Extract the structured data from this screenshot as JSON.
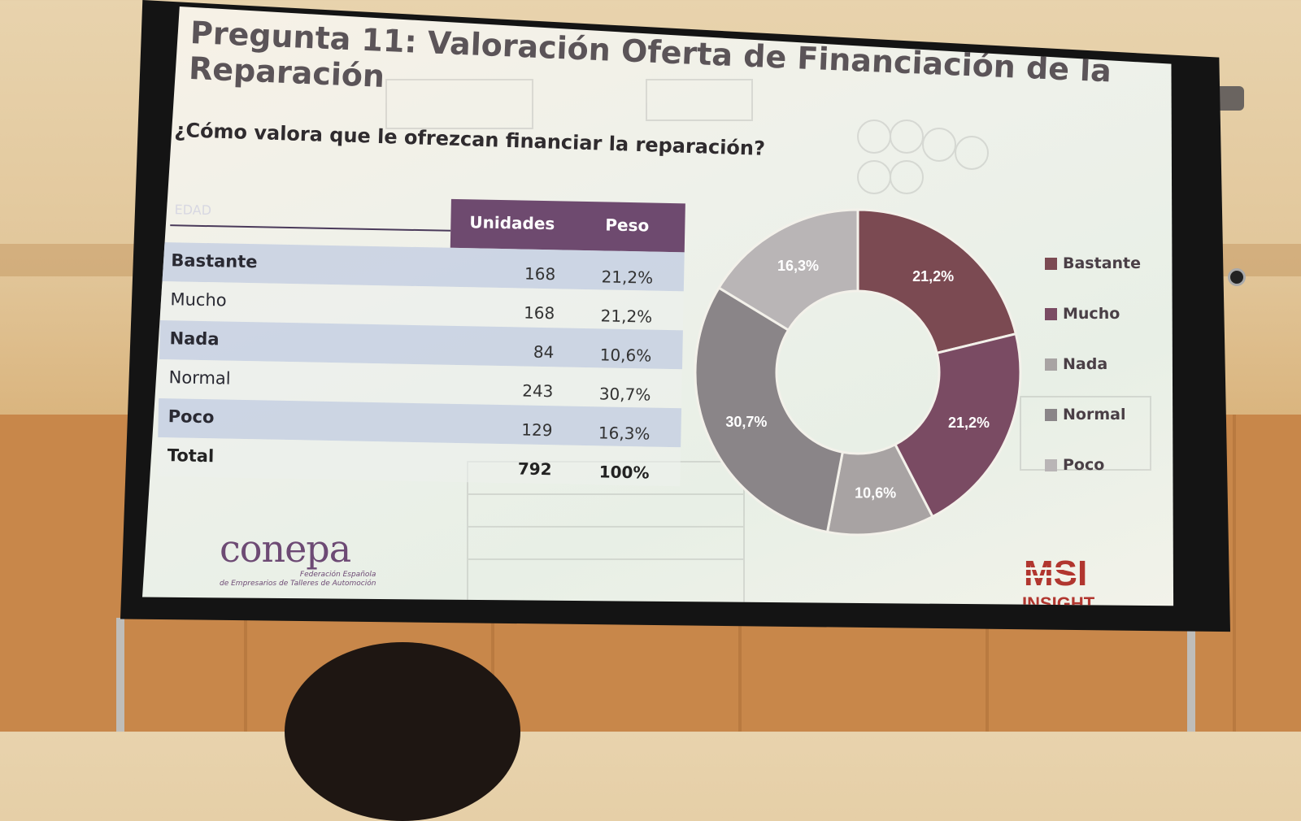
{
  "slide": {
    "title": "Pregunta 11: Valoración Oferta de Financiación de la Reparación",
    "subtitle": "¿Cómo valora que le ofrezcan financiar la reparación?"
  },
  "table": {
    "corner_label": "EDAD",
    "headers": [
      "Unidades",
      "Peso"
    ],
    "rows": [
      {
        "category": "Bastante",
        "units": "168",
        "peso": "21,2%"
      },
      {
        "category": "Mucho",
        "units": "168",
        "peso": "21,2%"
      },
      {
        "category": "Nada",
        "units": "84",
        "peso": "10,6%"
      },
      {
        "category": "Normal",
        "units": "243",
        "peso": "30,7%"
      },
      {
        "category": "Poco",
        "units": "129",
        "peso": "16,3%"
      },
      {
        "category": "Total",
        "units": "792",
        "peso": "100%"
      }
    ]
  },
  "chart_data": {
    "type": "pie",
    "categories": [
      "Bastante",
      "Mucho",
      "Nada",
      "Normal",
      "Poco"
    ],
    "values": [
      21.2,
      21.2,
      10.6,
      30.7,
      16.3
    ],
    "labels": [
      "21,2%",
      "21,2%",
      "10,6%",
      "30,7%",
      "16,3%"
    ],
    "colors": [
      "#7b4a52",
      "#7a4b63",
      "#a8a3a3",
      "#8a8588",
      "#b9b5b6"
    ],
    "legend_position": "right"
  },
  "logos": {
    "conepa": "conepa",
    "conepa_line1": "Federación Española",
    "conepa_line2": "de Empresarios de Talleres de Automoción",
    "msi": "MSI",
    "msi_sub": "INSIGHT"
  }
}
